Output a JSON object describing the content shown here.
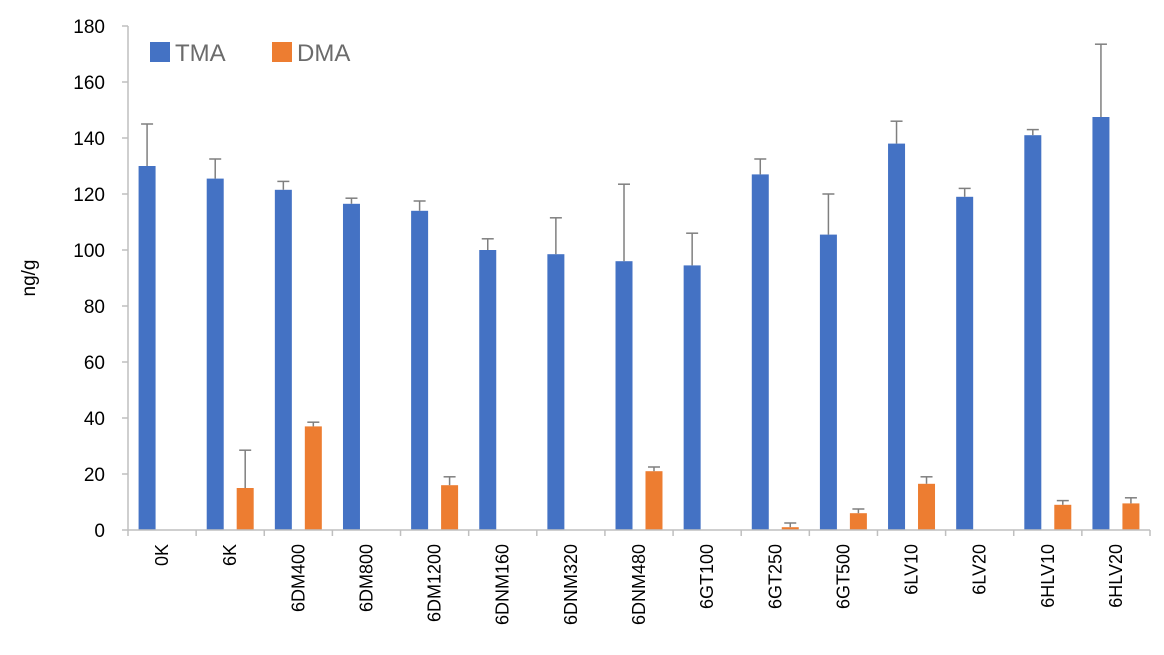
{
  "chart_data": {
    "type": "bar",
    "title": "",
    "xlabel": "",
    "ylabel": "ng/g",
    "ylim": [
      0,
      180
    ],
    "yticks": [
      0,
      20,
      40,
      60,
      80,
      100,
      120,
      140,
      160,
      180
    ],
    "grid": false,
    "legend_position": "top-left",
    "categories": [
      "0K",
      "6K",
      "6DM400",
      "6DM800",
      "6DM1200",
      "6DNM160",
      "6DNM320",
      "6DNM480",
      "6GT100",
      "6GT250",
      "6GT500",
      "6LV10",
      "6LV20",
      "6HLV10",
      "6HLV20"
    ],
    "series": [
      {
        "name": "TMA",
        "color": "#4472c4",
        "values": [
          130,
          125.5,
          121.5,
          116.5,
          114,
          100,
          98.5,
          96,
          94.5,
          127,
          105.5,
          138,
          119,
          141,
          147.5
        ],
        "errors": [
          15,
          7,
          3,
          2,
          3.5,
          4,
          13,
          27.5,
          11.5,
          5.5,
          14.5,
          8,
          3,
          2,
          26
        ]
      },
      {
        "name": "DMA",
        "color": "#ed7d31",
        "values": [
          0,
          15,
          37,
          0,
          16,
          0,
          0,
          21,
          0,
          1,
          6,
          16.5,
          0,
          9,
          9.5
        ],
        "errors": [
          0,
          13.5,
          1.5,
          0,
          3,
          0,
          0,
          1.5,
          0,
          1.5,
          1.5,
          2.5,
          0,
          1.5,
          2
        ]
      }
    ]
  }
}
